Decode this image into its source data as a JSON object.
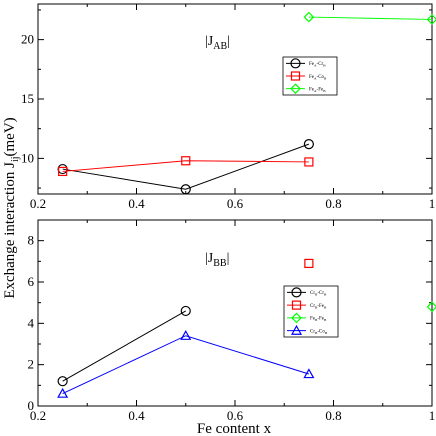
{
  "chart_data": [
    {
      "type": "line",
      "panel_label": {
        "main": "|J",
        "sub": "AB",
        "end": "|"
      },
      "xlim": [
        0.2,
        1.0
      ],
      "ylim": [
        7,
        23
      ],
      "x_ticks": [
        "0.2",
        "0.4",
        "0.6",
        "0.8",
        "1"
      ],
      "y_ticks": [
        "10",
        "15",
        "20"
      ],
      "grid": false,
      "legend_position": "top-right",
      "series": [
        {
          "name": [
            "Fe",
            "A",
            "-Cr",
            "B"
          ],
          "color": "#000000",
          "marker": "circle",
          "points": [
            [
              0.25,
              9.1
            ],
            [
              0.5,
              7.4
            ],
            [
              0.75,
              11.2
            ]
          ]
        },
        {
          "name": [
            "Fe",
            "A",
            "-Co",
            "B"
          ],
          "color": "#ff0000",
          "marker": "square",
          "points": [
            [
              0.25,
              8.9
            ],
            [
              0.5,
              9.8
            ],
            [
              0.75,
              9.7
            ]
          ]
        },
        {
          "name": [
            "Fe",
            "A",
            "-Fe",
            "B"
          ],
          "color": "#00ff00",
          "marker": "diamond",
          "points": [
            [
              0.75,
              21.9
            ],
            [
              1.0,
              21.7
            ]
          ]
        }
      ]
    },
    {
      "type": "line",
      "panel_label": {
        "main": "|J",
        "sub": "BB",
        "end": "|"
      },
      "xlim": [
        0.2,
        1.0
      ],
      "ylim": [
        0,
        9
      ],
      "x_ticks": [
        "0.2",
        "0.4",
        "0.6",
        "0.8",
        "1"
      ],
      "y_ticks": [
        "0",
        "2",
        "4",
        "6",
        "8"
      ],
      "grid": false,
      "legend_position": "right",
      "series": [
        {
          "name": [
            "Cr",
            "B",
            "-Cr",
            "B"
          ],
          "color": "#000000",
          "marker": "circle",
          "points": [
            [
              0.25,
              1.2
            ],
            [
              0.5,
              4.6
            ]
          ]
        },
        {
          "name": [
            "Cr",
            "B",
            "-Fe",
            "B"
          ],
          "color": "#ff0000",
          "marker": "square",
          "points": [
            [
              0.75,
              6.9
            ]
          ]
        },
        {
          "name": [
            "Fe",
            "B",
            "-Fe",
            "B"
          ],
          "color": "#00ff00",
          "marker": "diamond",
          "points": [
            [
              1.0,
              4.8
            ]
          ]
        },
        {
          "name": [
            "Cr",
            "B",
            "-Co",
            "B"
          ],
          "color": "#0000ff",
          "marker": "triangle",
          "points": [
            [
              0.25,
              0.6
            ],
            [
              0.5,
              3.4
            ],
            [
              0.75,
              1.55
            ]
          ]
        }
      ]
    }
  ],
  "axes": {
    "xlabel": "Fe content x",
    "ylabel_main": "Exchange interaction J",
    "ylabel_sub": "ij",
    "ylabel_unit": "(meV)"
  }
}
